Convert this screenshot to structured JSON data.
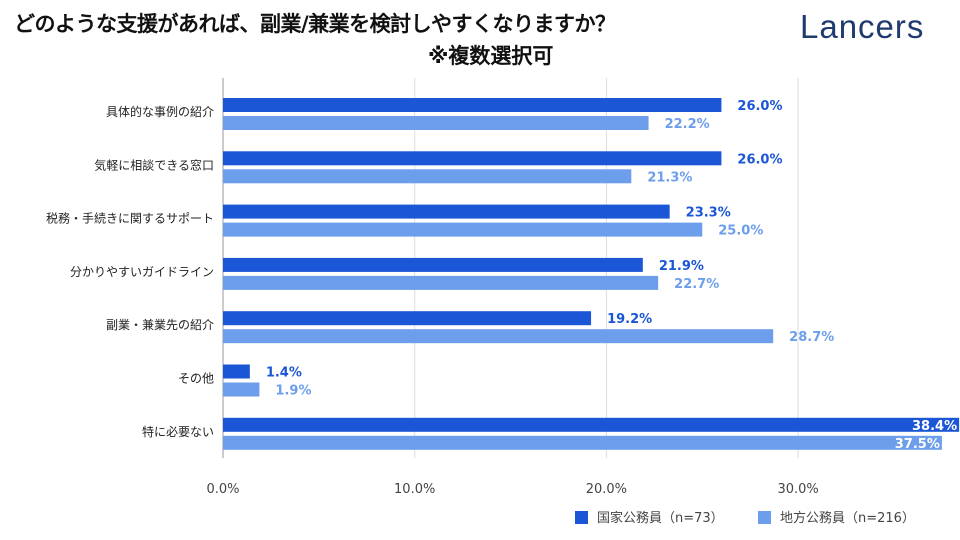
{
  "title": "どのような支援があれば、副業/兼業を検討しやすくなりますか？",
  "subtitle": "※複数選択可",
  "logo": "Lancers",
  "chart_data": {
    "type": "bar",
    "orientation": "horizontal",
    "categories": [
      "具体的な事例の紹介",
      "気軽に相談できる窓口",
      "税務・手続きに関するサポート",
      "分かりやすいガイドライン",
      "副業・兼業先の紹介",
      "その他",
      "特に必要ない"
    ],
    "series": [
      {
        "name": "国家公務員（n=73）",
        "color": "#1a56d6",
        "values": [
          26.0,
          26.0,
          23.3,
          21.9,
          19.2,
          1.4,
          38.4
        ]
      },
      {
        "name": "地方公務員（n=216）",
        "color": "#6d9eeb",
        "values": [
          22.2,
          21.3,
          25.0,
          22.7,
          28.7,
          1.9,
          37.5
        ]
      }
    ],
    "xlim": [
      0,
      38.4
    ],
    "xticks": [
      "0.0%",
      "10.0%",
      "20.0%",
      "30.0%"
    ],
    "grid": true,
    "legend": "bottom-right"
  }
}
